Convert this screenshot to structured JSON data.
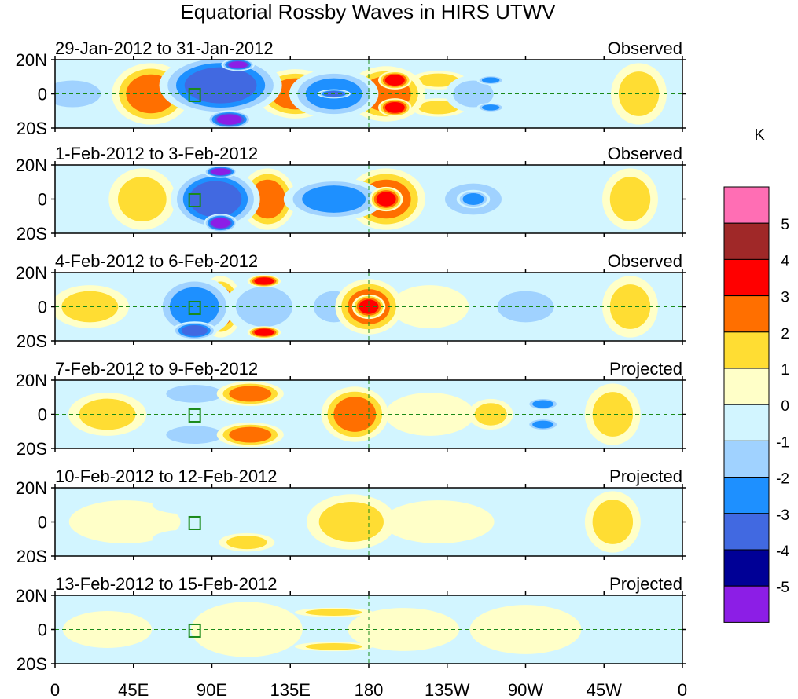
{
  "chart_data": {
    "type": "heatmap",
    "title": "Equatorial Rossby Waves in HIRS UTWV",
    "units_label": "K",
    "x_ticks": [
      "0",
      "45E",
      "90E",
      "135E",
      "180",
      "135W",
      "90W",
      "45W",
      "0"
    ],
    "x_tick_lons": [
      0,
      45,
      90,
      135,
      180,
      225,
      270,
      315,
      360
    ],
    "y_ticks": [
      "20N",
      "0",
      "20S"
    ],
    "y_tick_lats": [
      20,
      0,
      -20
    ],
    "xlim": [
      0,
      360
    ],
    "ylim": [
      -20,
      20
    ],
    "colorbar": {
      "levels": [
        "5",
        "4",
        "3",
        "2",
        "1",
        "0",
        "-1",
        "-2",
        "-3",
        "-4",
        "-5"
      ],
      "colors": [
        "#ff6eb4",
        "#a02828",
        "#ff0000",
        "#ff6f00",
        "#ffdd33",
        "#ffffc8",
        "#d2f5ff",
        "#a0d2ff",
        "#1e90ff",
        "#4169e1",
        "#000096",
        "#8c1ee6"
      ]
    },
    "panels": [
      {
        "date_range": "29-Jan-2012 to 31-Jan-2012",
        "kind": "Observed",
        "blobs": [
          [
            10,
            0,
            14,
            12,
            -2
          ],
          [
            55,
            0,
            14,
            20,
            2
          ],
          [
            95,
            5,
            22,
            20,
            -4
          ],
          [
            100,
            -15,
            8,
            6,
            -5
          ],
          [
            105,
            17,
            6,
            4,
            -5
          ],
          [
            138,
            0,
            14,
            16,
            2
          ],
          [
            160,
            0,
            16,
            16,
            -3
          ],
          [
            160,
            0,
            6,
            3,
            -4
          ],
          [
            190,
            0,
            14,
            18,
            2
          ],
          [
            195,
            -8,
            6,
            6,
            3
          ],
          [
            195,
            8,
            6,
            6,
            3
          ],
          [
            220,
            8,
            10,
            6,
            1
          ],
          [
            220,
            -8,
            10,
            6,
            1
          ],
          [
            240,
            0,
            10,
            12,
            -2
          ],
          [
            250,
            8,
            5,
            3,
            -3
          ],
          [
            250,
            -8,
            5,
            3,
            -3
          ],
          [
            290,
            0,
            12,
            14,
            -1
          ],
          [
            335,
            0,
            10,
            20,
            1
          ]
        ]
      },
      {
        "date_range": "1-Feb-2012 to 3-Feb-2012",
        "kind": "Observed",
        "blobs": [
          [
            20,
            0,
            12,
            14,
            -1
          ],
          [
            50,
            0,
            12,
            20,
            1
          ],
          [
            92,
            0,
            16,
            20,
            -4
          ],
          [
            95,
            -14,
            6,
            6,
            -5
          ],
          [
            95,
            16,
            6,
            4,
            -5
          ],
          [
            122,
            0,
            10,
            20,
            2
          ],
          [
            160,
            0,
            18,
            14,
            -3
          ],
          [
            190,
            0,
            14,
            20,
            2
          ],
          [
            190,
            0,
            6,
            8,
            3
          ],
          [
            240,
            0,
            14,
            14,
            -2
          ],
          [
            240,
            0,
            6,
            6,
            -3
          ],
          [
            275,
            0,
            10,
            14,
            -1
          ],
          [
            330,
            0,
            10,
            20,
            1
          ]
        ]
      },
      {
        "date_range": "4-Feb-2012 to 6-Feb-2012",
        "kind": "Observed",
        "blobs": [
          [
            20,
            0,
            14,
            14,
            1
          ],
          [
            80,
            0,
            14,
            20,
            -3
          ],
          [
            80,
            -14,
            8,
            6,
            -4
          ],
          [
            95,
            0,
            8,
            20,
            2
          ],
          [
            120,
            0,
            14,
            18,
            -2
          ],
          [
            120,
            15,
            6,
            4,
            3
          ],
          [
            120,
            -15,
            6,
            4,
            3
          ],
          [
            160,
            0,
            10,
            14,
            -2
          ],
          [
            180,
            0,
            12,
            18,
            2
          ],
          [
            180,
            0,
            6,
            8,
            3
          ],
          [
            215,
            0,
            14,
            14,
            0
          ],
          [
            270,
            0,
            14,
            14,
            -2
          ],
          [
            330,
            0,
            10,
            20,
            1
          ]
        ]
      },
      {
        "date_range": "7-Feb-2012 to 9-Feb-2012",
        "kind": "Projected",
        "blobs": [
          [
            30,
            0,
            14,
            14,
            1
          ],
          [
            80,
            12,
            14,
            8,
            -2
          ],
          [
            80,
            -12,
            14,
            8,
            -2
          ],
          [
            112,
            12,
            12,
            8,
            2
          ],
          [
            112,
            -12,
            12,
            8,
            2
          ],
          [
            140,
            0,
            14,
            14,
            -1
          ],
          [
            172,
            0,
            12,
            18,
            2
          ],
          [
            215,
            0,
            16,
            14,
            0
          ],
          [
            250,
            0,
            8,
            10,
            1
          ],
          [
            280,
            6,
            6,
            4,
            -3
          ],
          [
            280,
            -6,
            6,
            4,
            -3
          ],
          [
            320,
            0,
            10,
            20,
            1
          ]
        ]
      },
      {
        "date_range": "10-Feb-2012 to 12-Feb-2012",
        "kind": "Projected",
        "blobs": [
          [
            40,
            0,
            20,
            14,
            0
          ],
          [
            75,
            10,
            12,
            6,
            -1
          ],
          [
            75,
            -10,
            12,
            6,
            -1
          ],
          [
            110,
            -12,
            10,
            6,
            1
          ],
          [
            170,
            0,
            16,
            18,
            1
          ],
          [
            220,
            0,
            20,
            14,
            0
          ],
          [
            280,
            0,
            10,
            14,
            -1
          ],
          [
            320,
            0,
            10,
            20,
            1
          ]
        ]
      },
      {
        "date_range": "13-Feb-2012 to 15-Feb-2012",
        "kind": "Projected",
        "blobs": [
          [
            30,
            0,
            16,
            12,
            0
          ],
          [
            110,
            0,
            20,
            18,
            0
          ],
          [
            160,
            10,
            14,
            3,
            1
          ],
          [
            160,
            -10,
            14,
            3,
            1
          ],
          [
            200,
            0,
            20,
            14,
            0
          ],
          [
            270,
            0,
            20,
            16,
            0
          ]
        ]
      }
    ]
  }
}
